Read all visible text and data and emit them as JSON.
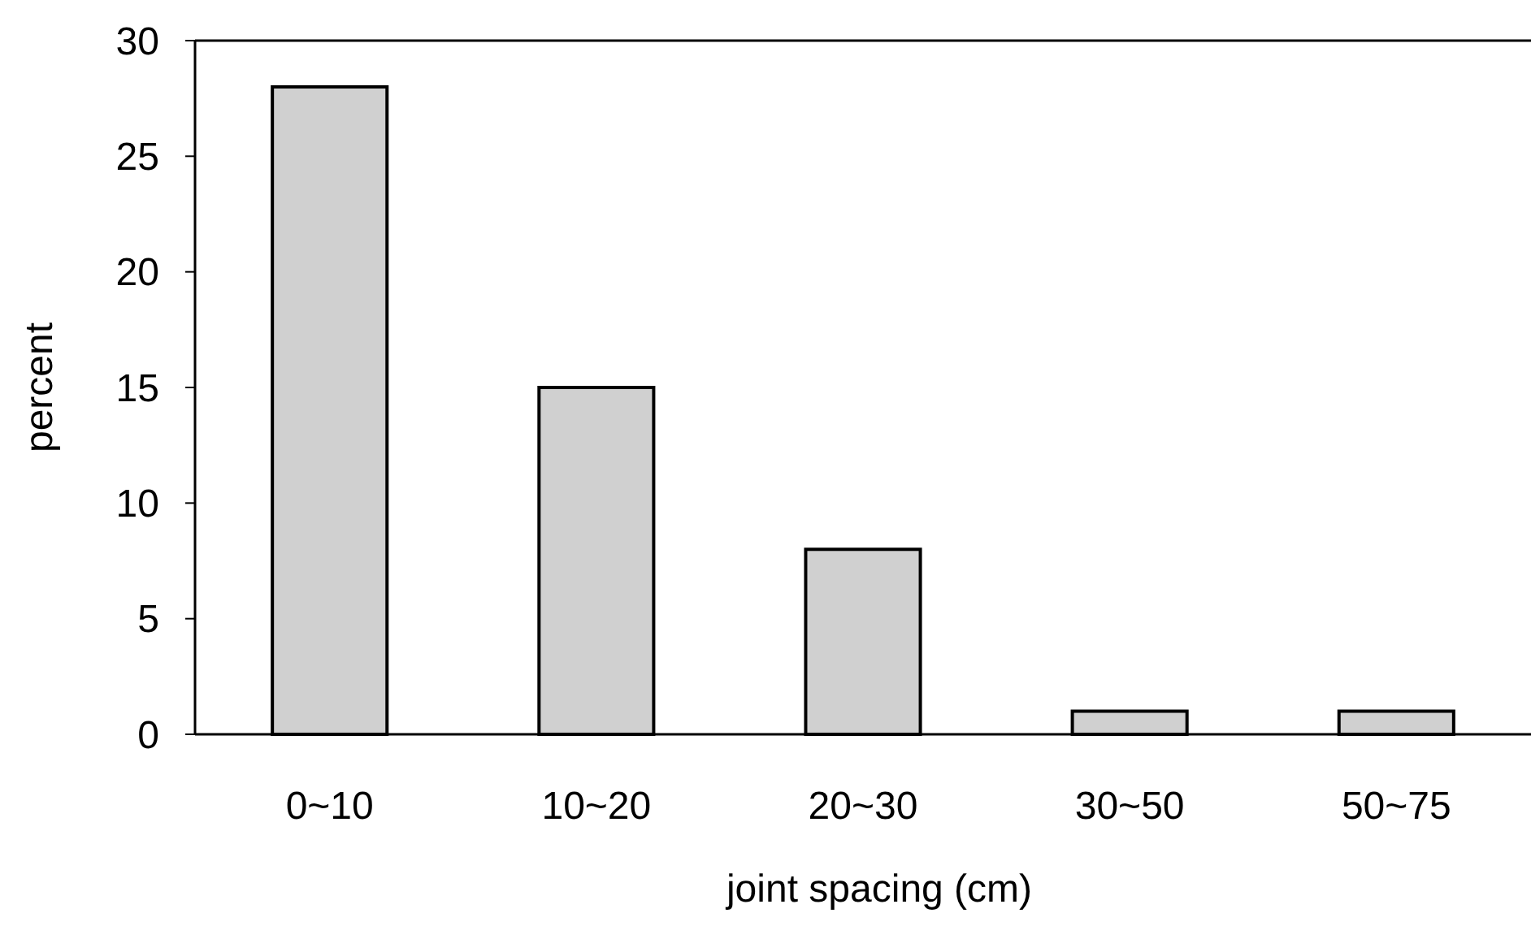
{
  "chart_data": {
    "type": "bar",
    "xlabel": "joint spacing (cm)",
    "ylabel": "percent",
    "categories": [
      "0~10",
      "10~20",
      "20~30",
      "30~50",
      "50~75"
    ],
    "values": [
      28,
      15,
      8,
      1,
      1
    ],
    "color": "#d0d0d0",
    "ylim": [
      0,
      30
    ],
    "yticks": [
      0,
      5,
      10,
      15,
      20,
      25,
      30
    ],
    "grid": false
  }
}
